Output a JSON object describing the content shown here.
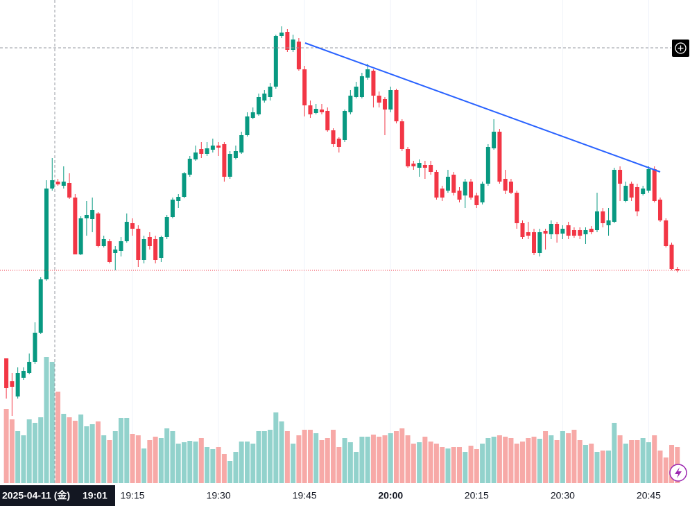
{
  "chart_data": {
    "type": "candlestick",
    "x": [
      1133,
      1134,
      1135,
      1136,
      1137,
      1138,
      1139,
      1140,
      1141,
      1142,
      1143,
      1144,
      1145,
      1146,
      1147,
      1148,
      1149,
      1150,
      1151,
      1152,
      1153,
      1154,
      1155,
      1156,
      1157,
      1158,
      1159,
      1160,
      1161,
      1162,
      1163,
      1164,
      1165,
      1166,
      1167,
      1168,
      1169,
      1170,
      1171,
      1172,
      1173,
      1174,
      1175,
      1176,
      1177,
      1178,
      1179,
      1180,
      1181,
      1182,
      1183,
      1184,
      1185,
      1186,
      1187,
      1188,
      1189,
      1190,
      1191,
      1192,
      1193,
      1194,
      1195,
      1196,
      1197,
      1198,
      1199,
      1200,
      1201,
      1202,
      1203,
      1204,
      1205,
      1206,
      1207,
      1208,
      1209,
      1210,
      1211,
      1212,
      1213,
      1214,
      1215,
      1216,
      1217,
      1218,
      1219,
      1220,
      1221,
      1222,
      1223,
      1224,
      1225,
      1226,
      1227,
      1228,
      1229,
      1230,
      1231,
      1232,
      1233,
      1234,
      1235,
      1236,
      1237,
      1238,
      1239,
      1240,
      1241,
      1242,
      1243,
      1244,
      1245,
      1246,
      1247,
      1248,
      1249,
      1250
    ],
    "open": [
      213,
      180,
      158,
      185,
      192,
      208,
      250,
      327,
      458,
      468,
      462,
      466,
      445,
      363,
      415,
      414,
      422,
      375,
      382,
      365,
      368,
      382,
      408,
      400,
      355,
      388,
      385,
      358,
      388,
      417,
      440,
      446,
      478,
      500,
      515,
      508,
      514,
      520,
      522,
      475,
      502,
      510,
      535,
      560,
      565,
      585,
      590,
      605,
      678,
      684,
      658,
      670,
      630,
      578,
      567,
      572,
      570,
      542,
      530,
      528,
      568,
      590,
      590,
      618,
      628,
      592,
      587,
      572,
      600,
      555,
      515,
      494,
      488,
      492,
      492,
      482,
      458,
      455,
      478,
      455,
      448,
      468,
      448,
      438,
      465,
      516,
      540,
      472,
      468,
      452,
      408,
      395,
      395,
      365,
      397,
      392,
      407,
      393,
      405,
      398,
      398,
      392,
      400,
      398,
      425,
      405,
      410,
      485,
      440,
      465,
      460,
      450,
      455,
      486,
      442,
      412,
      377,
      342
    ],
    "high": [
      213,
      192,
      200,
      200,
      220,
      265,
      330,
      470,
      502,
      472,
      490,
      480,
      450,
      418,
      440,
      445,
      424,
      390,
      385,
      375,
      388,
      422,
      415,
      405,
      390,
      395,
      390,
      390,
      420,
      445,
      450,
      482,
      505,
      520,
      525,
      525,
      530,
      525,
      525,
      512,
      520,
      540,
      568,
      575,
      595,
      600,
      610,
      680,
      692,
      688,
      680,
      675,
      635,
      585,
      580,
      580,
      575,
      545,
      532,
      572,
      600,
      612,
      625,
      638,
      630,
      598,
      590,
      605,
      602,
      558,
      518,
      498,
      500,
      498,
      498,
      485,
      462,
      485,
      482,
      460,
      472,
      472,
      452,
      468,
      522,
      558,
      544,
      485,
      472,
      455,
      412,
      410,
      400,
      400,
      400,
      412,
      410,
      405,
      410,
      402,
      402,
      402,
      404,
      452,
      430,
      430,
      488,
      490,
      468,
      468,
      465,
      462,
      490,
      490,
      445,
      415,
      380,
      345
    ],
    "low": [
      155,
      130,
      155,
      182,
      190,
      205,
      248,
      325,
      455,
      462,
      458,
      443,
      363,
      362,
      390,
      395,
      373,
      373,
      350,
      340,
      360,
      380,
      390,
      345,
      350,
      370,
      350,
      352,
      385,
      415,
      430,
      444,
      475,
      498,
      502,
      505,
      510,
      505,
      468,
      472,
      500,
      508,
      533,
      558,
      563,
      582,
      585,
      602,
      675,
      655,
      655,
      628,
      562,
      560,
      565,
      565,
      540,
      518,
      510,
      525,
      565,
      588,
      588,
      615,
      575,
      575,
      535,
      568,
      552,
      512,
      488,
      485,
      475,
      472,
      478,
      442,
      440,
      452,
      448,
      438,
      430,
      442,
      430,
      435,
      462,
      514,
      465,
      450,
      450,
      400,
      385,
      385,
      362,
      360,
      370,
      385,
      380,
      385,
      385,
      387,
      385,
      378,
      392,
      395,
      402,
      390,
      408,
      440,
      438,
      440,
      418,
      448,
      452,
      438,
      410,
      373,
      340,
      337
    ],
    "close": [
      170,
      172,
      192,
      195,
      208,
      250,
      327,
      458,
      470,
      464,
      468,
      445,
      363,
      415,
      420,
      427,
      375,
      385,
      352,
      370,
      382,
      410,
      400,
      355,
      385,
      375,
      355,
      388,
      417,
      442,
      446,
      480,
      501,
      510,
      508,
      516,
      520,
      517,
      475,
      508,
      512,
      535,
      562,
      568,
      590,
      595,
      605,
      678,
      683,
      658,
      673,
      630,
      578,
      565,
      573,
      568,
      542,
      522,
      518,
      570,
      592,
      605,
      620,
      630,
      592,
      582,
      572,
      600,
      555,
      515,
      490,
      490,
      495,
      488,
      482,
      445,
      445,
      475,
      452,
      442,
      468,
      445,
      434,
      465,
      518,
      540,
      468,
      455,
      452,
      408,
      388,
      390,
      365,
      395,
      393,
      407,
      392,
      400,
      390,
      390,
      390,
      398,
      395,
      425,
      408,
      412,
      485,
      465,
      462,
      445,
      425,
      458,
      486,
      440,
      412,
      375,
      342,
      340
    ],
    "volume": [
      107,
      92,
      75,
      69,
      92,
      87,
      95,
      182,
      175,
      132,
      100,
      95,
      90,
      99,
      82,
      85,
      89,
      69,
      62,
      75,
      94,
      94,
      71,
      69,
      50,
      62,
      67,
      65,
      79,
      75,
      57,
      59,
      61,
      60,
      65,
      52,
      49,
      52,
      42,
      32,
      45,
      60,
      60,
      57,
      75,
      75,
      77,
      102,
      89,
      75,
      57,
      69,
      77,
      77,
      72,
      62,
      65,
      77,
      52,
      65,
      59,
      45,
      67,
      67,
      70,
      67,
      69,
      72,
      75,
      79,
      69,
      57,
      59,
      67,
      60,
      57,
      52,
      50,
      52,
      52,
      45,
      54,
      49,
      57,
      65,
      67,
      69,
      67,
      65,
      57,
      60,
      65,
      67,
      64,
      75,
      69,
      62,
      75,
      72,
      77,
      62,
      55,
      57,
      45,
      47,
      47,
      87,
      69,
      57,
      62,
      62,
      65,
      59,
      69,
      47,
      37,
      55,
      52
    ],
    "up_color": "#089981",
    "down_color": "#f23645",
    "volume_up_color": "#92d2cc",
    "volume_down_color": "#f7a9a7",
    "ylim": [
      0,
      730
    ],
    "volume_ylim": [
      0,
      697
    ],
    "xlim": [
      1131.9,
      1252.2
    ],
    "xticks": [
      {
        "value": 1155,
        "label": "19:15"
      },
      {
        "value": 1170,
        "label": "19:30"
      },
      {
        "value": 1185,
        "label": "19:45"
      },
      {
        "value": 1200,
        "label": "20:00"
      },
      {
        "value": 1215,
        "label": "20:15"
      },
      {
        "value": 1230,
        "label": "20:30"
      },
      {
        "value": 1245,
        "label": "20:45"
      }
    ],
    "grid": true,
    "crosshair": {
      "date": "2025-04-11 (金)",
      "time": "19:01"
    }
  }
}
